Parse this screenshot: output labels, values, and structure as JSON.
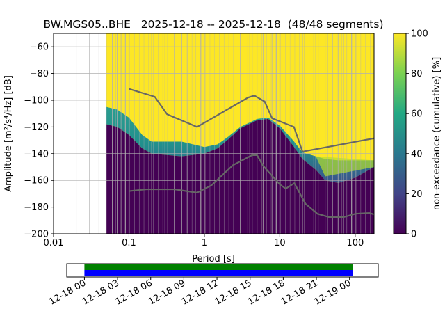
{
  "chart_data": {
    "type": "heatmap",
    "title": "BW.MGS05..BHE   2025-12-18 -- 2025-12-18  (48/48 segments)",
    "xlabel": "Period [s]",
    "ylabel": "Amplitude [m²/s⁴/Hz] [dB]",
    "xscale": "log",
    "xlim": [
      0.01,
      178
    ],
    "ylim": [
      -200,
      -50
    ],
    "xticks": [
      {
        "v": 0.01,
        "label": "0.01"
      },
      {
        "v": 0.1,
        "label": "0.1"
      },
      {
        "v": 1,
        "label": "1"
      },
      {
        "v": 10,
        "label": "10"
      },
      {
        "v": 100,
        "label": "100"
      }
    ],
    "yticks": [
      {
        "v": -60,
        "label": "−60"
      },
      {
        "v": -80,
        "label": "−80"
      },
      {
        "v": -100,
        "label": "−100"
      },
      {
        "v": -120,
        "label": "−120"
      },
      {
        "v": -140,
        "label": "−140"
      },
      {
        "v": -160,
        "label": "−160"
      },
      {
        "v": -180,
        "label": "−180"
      },
      {
        "v": -200,
        "label": "−200"
      }
    ],
    "grid": true,
    "data_period_min": 0.05,
    "density_boundary_low": [
      [
        0.05,
        -118
      ],
      [
        0.07,
        -120
      ],
      [
        0.1,
        -126
      ],
      [
        0.15,
        -136
      ],
      [
        0.2,
        -140
      ],
      [
        0.5,
        -142
      ],
      [
        1,
        -140
      ],
      [
        1.5,
        -136
      ],
      [
        2,
        -130
      ],
      [
        3,
        -121
      ],
      [
        5,
        -115
      ],
      [
        7,
        -114
      ],
      [
        10,
        -121
      ],
      [
        15,
        -134
      ],
      [
        20,
        -144
      ],
      [
        30,
        -152
      ],
      [
        40,
        -160
      ],
      [
        60,
        -162
      ],
      [
        100,
        -158
      ],
      [
        178,
        -150
      ]
    ],
    "density_boundary_high": [
      [
        0.05,
        -105
      ],
      [
        0.07,
        -107
      ],
      [
        0.1,
        -113
      ],
      [
        0.15,
        -126
      ],
      [
        0.2,
        -131
      ],
      [
        0.5,
        -131
      ],
      [
        1,
        -135
      ],
      [
        1.5,
        -133
      ],
      [
        2,
        -128
      ],
      [
        3,
        -120
      ],
      [
        5,
        -114
      ],
      [
        7,
        -113
      ],
      [
        10,
        -119
      ],
      [
        15,
        -130
      ],
      [
        20,
        -139
      ],
      [
        30,
        -142
      ],
      [
        40,
        -144
      ],
      [
        60,
        -145
      ],
      [
        100,
        -145
      ],
      [
        178,
        -145
      ]
    ],
    "series": [
      {
        "name": "NHNM",
        "color": "#666666",
        "points": [
          [
            0.1,
            -91.5
          ],
          [
            0.22,
            -97.4
          ],
          [
            0.32,
            -110.5
          ],
          [
            0.8,
            -120
          ],
          [
            3.8,
            -98
          ],
          [
            4.6,
            -96.5
          ],
          [
            6.3,
            -101
          ],
          [
            7.9,
            -113.5
          ],
          [
            15.4,
            -120
          ],
          [
            20,
            -138.5
          ],
          [
            178,
            -128.5
          ]
        ]
      },
      {
        "name": "NLNM",
        "color": "#666666",
        "points": [
          [
            0.1,
            -168
          ],
          [
            0.17,
            -166.7
          ],
          [
            0.4,
            -166.7
          ],
          [
            0.8,
            -169.2
          ],
          [
            1.24,
            -163.7
          ],
          [
            2.4,
            -148.6
          ],
          [
            4.3,
            -141.1
          ],
          [
            5,
            -141.1
          ],
          [
            6,
            -149
          ],
          [
            10,
            -163
          ],
          [
            12,
            -166.2
          ],
          [
            15.6,
            -162.1
          ],
          [
            21.9,
            -177.5
          ],
          [
            31.6,
            -185
          ],
          [
            45,
            -187.5
          ],
          [
            70,
            -187.5
          ],
          [
            101,
            -185
          ],
          [
            154,
            -184.4
          ],
          [
            178,
            -185.5
          ]
        ]
      }
    ],
    "colorbar": {
      "label": "non-exceedance (cumulative) [%]",
      "range": [
        0,
        100
      ],
      "ticks": [
        "0",
        "20",
        "40",
        "60",
        "80",
        "100"
      ]
    },
    "timeline": {
      "ticks": [
        "12-18 00",
        "12-18 03",
        "12-18 06",
        "12-18 09",
        "12-18 12",
        "12-18 15",
        "12-18 18",
        "12-18 21",
        "12-19 00"
      ],
      "coverage_start_hours": 0,
      "coverage_end_hours": 24.3,
      "axis_start_hours": -1.6,
      "axis_end_hours": 26.6,
      "colors": {
        "top": "#008000",
        "bottom": "#0000ff"
      }
    }
  }
}
